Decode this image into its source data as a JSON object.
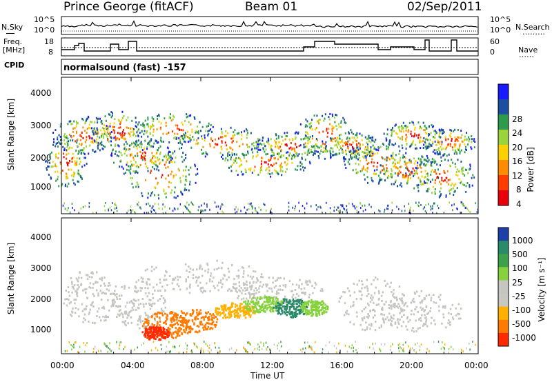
{
  "header": {
    "station": "Prince George (fitACF)",
    "beam": "Beam 01",
    "date": "02/Sep/2011"
  },
  "side_labels": {
    "nsky": "N.Sky",
    "nsearch": "N.Search",
    "nsearch_dots": "………",
    "freq": "Freq.",
    "freq_unit": "[MHz]",
    "nave": "Nave",
    "nave_dots": "……",
    "cpid": "CPID",
    "cpid_value": "normalsound (fast) -157"
  },
  "noise_panel": {
    "left_ticks": [
      "10^5",
      "10^0"
    ],
    "right_ticks": [
      "10^5",
      "10^0"
    ]
  },
  "freq_panel": {
    "left_ticks": [
      "18",
      "8"
    ],
    "right_ticks": [
      "60",
      "0"
    ]
  },
  "chart_data": [
    {
      "type": "heatmap",
      "ylabel": "Slant Range [km]",
      "yticks": [
        "4000",
        "3000",
        "2000",
        "1000"
      ],
      "ylim": [
        0,
        4500
      ],
      "colorbar": {
        "label": "Power [dB]",
        "ticks": [
          "28",
          "24",
          "20",
          "16",
          "12",
          "8",
          "4"
        ],
        "colors": [
          "#e8000b",
          "#ff3c00",
          "#ff8c00",
          "#ffd000",
          "#9ad43a",
          "#2e9a4e",
          "#1c4fa0",
          "#1a1aff"
        ]
      }
    },
    {
      "type": "heatmap",
      "ylabel": "Slant Range [km]",
      "yticks": [
        "4000",
        "3000",
        "2000",
        "1000"
      ],
      "ylim": [
        0,
        4500
      ],
      "colorbar": {
        "label": "Velocity  [m s⁻¹]",
        "ticks": [
          "1000",
          "500",
          "100",
          "25",
          "-25",
          "-100",
          "-500",
          "-1000"
        ],
        "colors": [
          "#1d3fa8",
          "#2a8a6a",
          "#3ea04a",
          "#86d23c",
          "#c6c6c0",
          "#c8c8c0",
          "#ffb000",
          "#ff7a00",
          "#ff2a00"
        ]
      }
    }
  ],
  "x_axis": {
    "label": "Time UT",
    "ticks": [
      "00:00",
      "04:00",
      "08:00",
      "12:00",
      "16:00",
      "20:00",
      "00:00"
    ]
  }
}
